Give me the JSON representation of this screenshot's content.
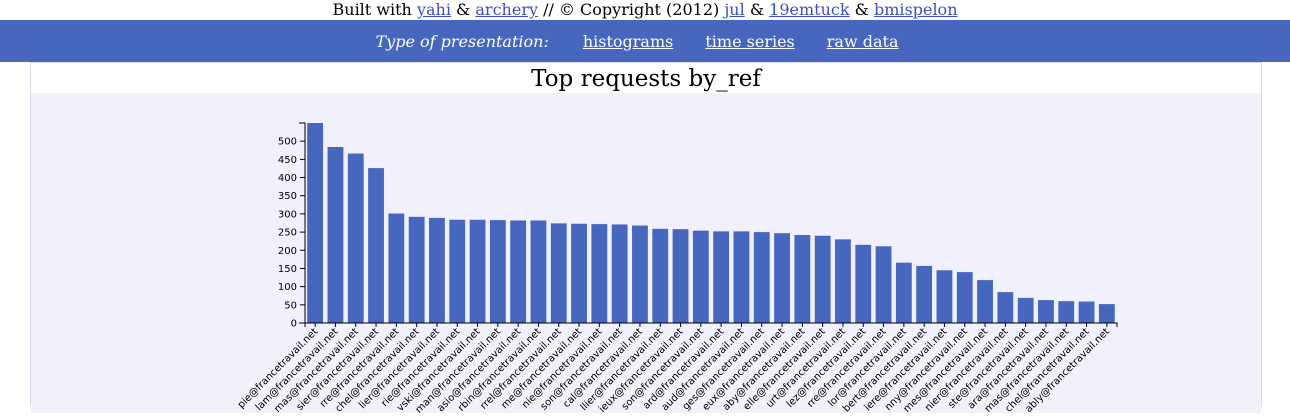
{
  "credits": {
    "built_with": "Built with",
    "yahi": "yahi",
    "amp1": "&",
    "archery": "archery",
    "copyright": "// © Copyright (2012)",
    "jul": "jul",
    "amp2": "&",
    "u19emtuck": "19emtuck",
    "amp3": "&",
    "bmispelon": "bmispelon"
  },
  "nav": {
    "label": "Type of presentation:",
    "histograms": "histograms",
    "time_series": "time series",
    "raw_data": "raw data"
  },
  "panel": {
    "title": "Top requests by_ref"
  },
  "colors": {
    "bar": "#4767bf",
    "nav_bg": "#4767bf",
    "chart_bg": "#f1f1fd"
  },
  "chart_data": {
    "type": "bar",
    "title": "Top requests by_ref",
    "xlabel": "",
    "ylabel": "",
    "ylim": [
      0,
      550
    ],
    "yticks": [
      0,
      50,
      100,
      150,
      200,
      250,
      300,
      350,
      400,
      450,
      500
    ],
    "grid": false,
    "categories": [
      "pie@francetravail.net",
      "lam@francetravail.net",
      "mas@francetravail.net",
      "sier@francetravail.net",
      "rre@francetravail.net",
      "chel@francetravail.net",
      "lier@francetravail.net",
      "rie@francetravail.net",
      "vski@francetravail.net",
      "man@francetravail.net",
      "asio@francetravail.net",
      "rbin@francetravail.net",
      "rrel@francetravail.net",
      "me@francetravail.net",
      "nie@francetravail.net",
      "son@francetravail.net",
      "cal@francetravail.net",
      "llier@francetravail.net",
      "ieux@francetravail.net",
      "son@francetravail.net",
      "ard@francetravail.net",
      "aud@francetravail.net",
      "ges@francetravail.net",
      "eux@francetravail.net",
      "aby@francetravail.net",
      "elle@francetravail.net",
      "urt@francetravail.net",
      "lez@francetravail.net",
      "rre@francetravail.net",
      "lor@francetravail.net",
      "bert@francetravail.net",
      "iere@francetravail.net",
      "nny@francetravail.net",
      "mes@francetravail.net",
      "nier@francetravail.net",
      "ste@francetravail.net",
      "ara@francetravail.net",
      "mas@francetravail.net",
      "chel@francetravail.net",
      "ably@francetravail.net"
    ],
    "values": [
      550,
      484,
      466,
      426,
      301,
      292,
      289,
      284,
      284,
      283,
      282,
      282,
      274,
      273,
      272,
      271,
      268,
      259,
      258,
      254,
      252,
      252,
      250,
      247,
      242,
      240,
      230,
      215,
      211,
      166,
      157,
      145,
      140,
      118,
      85,
      69,
      63,
      60,
      59,
      52
    ]
  }
}
